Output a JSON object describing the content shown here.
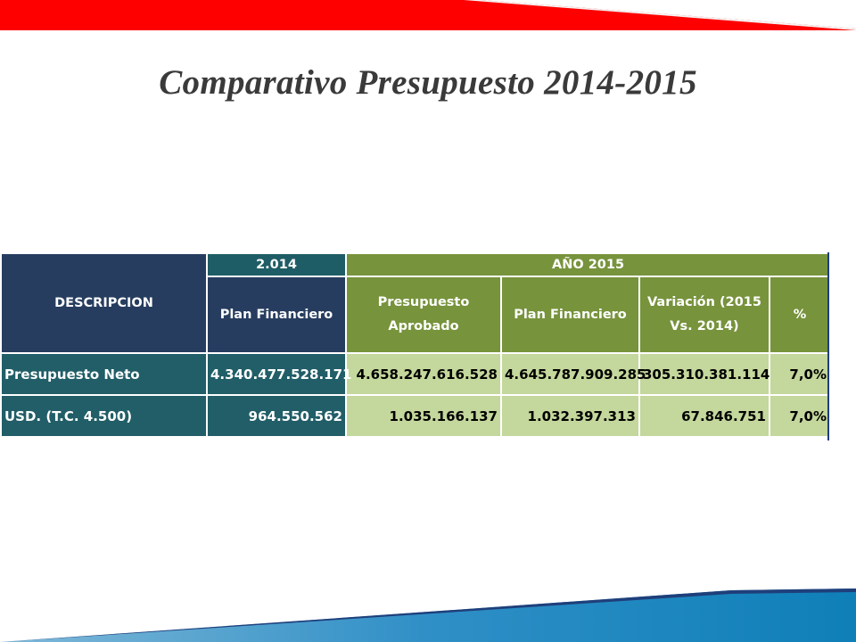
{
  "title": "Comparativo Presupuesto 2014-2015",
  "colors": {
    "header_navy": "#263d5f",
    "header_teal": "#1f5d66",
    "header_olive": "#77933c",
    "body_light": "#c4d79c",
    "accent_red": "#ff0000",
    "accent_blue": "#1f86c7"
  },
  "table": {
    "col_description": "DESCRIPCION",
    "group_2014": "2.014",
    "group_2015": "AÑO 2015",
    "sub_plan_2014": "Plan Financiero",
    "sub_presupuesto_line1": "Presupuesto",
    "sub_presupuesto_line2": "Aprobado",
    "sub_plan_2015": "Plan Financiero",
    "sub_variacion_line1": "Variación (2015",
    "sub_variacion_line2": "Vs. 2014)",
    "sub_percent": "%",
    "rows": [
      {
        "label": "Presupuesto Neto",
        "plan_2014": "4.340.477.528.171",
        "presupuesto_aprobado": "4.658.247.616.528",
        "plan_2015": "4.645.787.909.285",
        "variacion": "305.310.381.114",
        "percent": "7,0%"
      },
      {
        "label": "USD. (T.C. 4.500)",
        "plan_2014": "964.550.562",
        "presupuesto_aprobado": "1.035.166.137",
        "plan_2015": "1.032.397.313",
        "variacion": "67.846.751",
        "percent": "7,0%"
      }
    ]
  }
}
